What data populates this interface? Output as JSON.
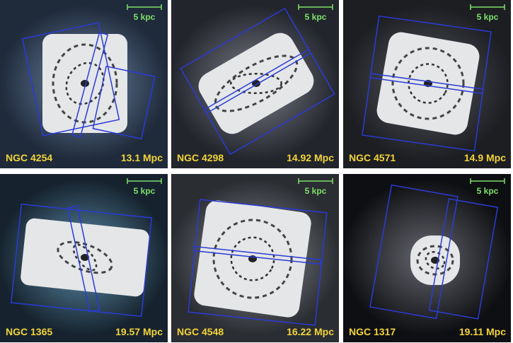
{
  "panels": [
    {
      "name": "NGC 4254",
      "distance": "13.1 Mpc",
      "scale_bar": "5 kpc"
    },
    {
      "name": "NGC 4298",
      "distance": "14.92 Mpc",
      "scale_bar": "5 kpc"
    },
    {
      "name": "NGC 4571",
      "distance": "14.9 Mpc",
      "scale_bar": "5 kpc"
    },
    {
      "name": "NGC 1365",
      "distance": "19.57 Mpc",
      "scale_bar": "5 kpc"
    },
    {
      "name": "NGC 4548",
      "distance": "16.22 Mpc",
      "scale_bar": "5 kpc"
    },
    {
      "name": "NGC 1317",
      "distance": "19.11 Mpc",
      "scale_bar": "5 kpc"
    }
  ]
}
